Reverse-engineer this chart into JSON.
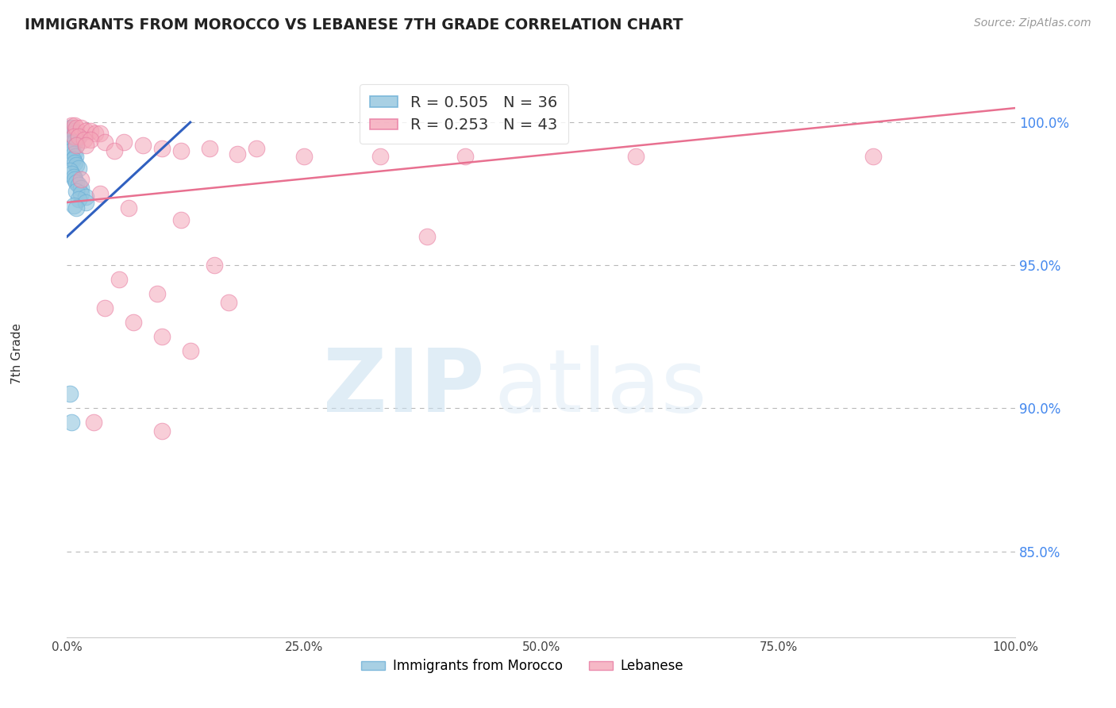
{
  "title": "IMMIGRANTS FROM MOROCCO VS LEBANESE 7TH GRADE CORRELATION CHART",
  "source_text": "Source: ZipAtlas.com",
  "ylabel": "7th Grade",
  "xlim": [
    0.0,
    1.0
  ],
  "ylim": [
    0.82,
    1.018
  ],
  "ytick_labels": [
    "85.0%",
    "90.0%",
    "95.0%",
    "100.0%"
  ],
  "ytick_values": [
    0.85,
    0.9,
    0.95,
    1.0
  ],
  "xtick_values": [
    0.0,
    0.25,
    0.5,
    0.75,
    1.0
  ],
  "xtick_labels": [
    "0.0%",
    "25.0%",
    "50.0%",
    "75.0%",
    "100.0%"
  ],
  "watermark_zip": "ZIP",
  "watermark_atlas": "atlas",
  "legend_r_blue": "R = 0.505",
  "legend_n_blue": "N = 36",
  "legend_r_pink": "R = 0.253",
  "legend_n_pink": "N = 43",
  "blue_color": "#92c5de",
  "pink_color": "#f4a6b8",
  "blue_edge_color": "#6aaed6",
  "pink_edge_color": "#e879a0",
  "blue_line_color": "#3060c0",
  "pink_line_color": "#e87090",
  "blue_scatter": [
    [
      0.003,
      0.998
    ],
    [
      0.005,
      0.998
    ],
    [
      0.006,
      0.997
    ],
    [
      0.007,
      0.997
    ],
    [
      0.008,
      0.996
    ],
    [
      0.009,
      0.996
    ],
    [
      0.01,
      0.995
    ],
    [
      0.012,
      0.995
    ],
    [
      0.004,
      0.994
    ],
    [
      0.006,
      0.993
    ],
    [
      0.008,
      0.993
    ],
    [
      0.01,
      0.992
    ],
    [
      0.004,
      0.991
    ],
    [
      0.005,
      0.99
    ],
    [
      0.007,
      0.989
    ],
    [
      0.009,
      0.988
    ],
    [
      0.006,
      0.987
    ],
    [
      0.008,
      0.986
    ],
    [
      0.01,
      0.985
    ],
    [
      0.012,
      0.984
    ],
    [
      0.003,
      0.983
    ],
    [
      0.005,
      0.982
    ],
    [
      0.007,
      0.981
    ],
    [
      0.008,
      0.98
    ],
    [
      0.01,
      0.979
    ],
    [
      0.012,
      0.978
    ],
    [
      0.015,
      0.977
    ],
    [
      0.01,
      0.976
    ],
    [
      0.015,
      0.975
    ],
    [
      0.02,
      0.974
    ],
    [
      0.012,
      0.973
    ],
    [
      0.02,
      0.972
    ],
    [
      0.007,
      0.971
    ],
    [
      0.01,
      0.97
    ],
    [
      0.003,
      0.905
    ],
    [
      0.005,
      0.895
    ]
  ],
  "pink_scatter": [
    [
      0.005,
      0.999
    ],
    [
      0.008,
      0.999
    ],
    [
      0.01,
      0.998
    ],
    [
      0.015,
      0.998
    ],
    [
      0.02,
      0.997
    ],
    [
      0.025,
      0.997
    ],
    [
      0.03,
      0.996
    ],
    [
      0.035,
      0.996
    ],
    [
      0.007,
      0.995
    ],
    [
      0.012,
      0.995
    ],
    [
      0.018,
      0.994
    ],
    [
      0.025,
      0.994
    ],
    [
      0.04,
      0.993
    ],
    [
      0.06,
      0.993
    ],
    [
      0.01,
      0.992
    ],
    [
      0.02,
      0.992
    ],
    [
      0.08,
      0.992
    ],
    [
      0.1,
      0.991
    ],
    [
      0.15,
      0.991
    ],
    [
      0.2,
      0.991
    ],
    [
      0.05,
      0.99
    ],
    [
      0.12,
      0.99
    ],
    [
      0.18,
      0.989
    ],
    [
      0.25,
      0.988
    ],
    [
      0.33,
      0.988
    ],
    [
      0.42,
      0.988
    ],
    [
      0.6,
      0.988
    ],
    [
      0.85,
      0.988
    ],
    [
      0.015,
      0.98
    ],
    [
      0.035,
      0.975
    ],
    [
      0.065,
      0.97
    ],
    [
      0.12,
      0.966
    ],
    [
      0.38,
      0.96
    ],
    [
      0.155,
      0.95
    ],
    [
      0.055,
      0.945
    ],
    [
      0.095,
      0.94
    ],
    [
      0.17,
      0.937
    ],
    [
      0.04,
      0.935
    ],
    [
      0.07,
      0.93
    ],
    [
      0.1,
      0.925
    ],
    [
      0.13,
      0.92
    ],
    [
      0.028,
      0.895
    ],
    [
      0.1,
      0.892
    ]
  ],
  "blue_line_x": [
    0.0,
    0.13
  ],
  "blue_line_y": [
    0.96,
    1.0
  ],
  "pink_line_x": [
    0.0,
    1.0
  ],
  "pink_line_y": [
    0.972,
    1.005
  ]
}
